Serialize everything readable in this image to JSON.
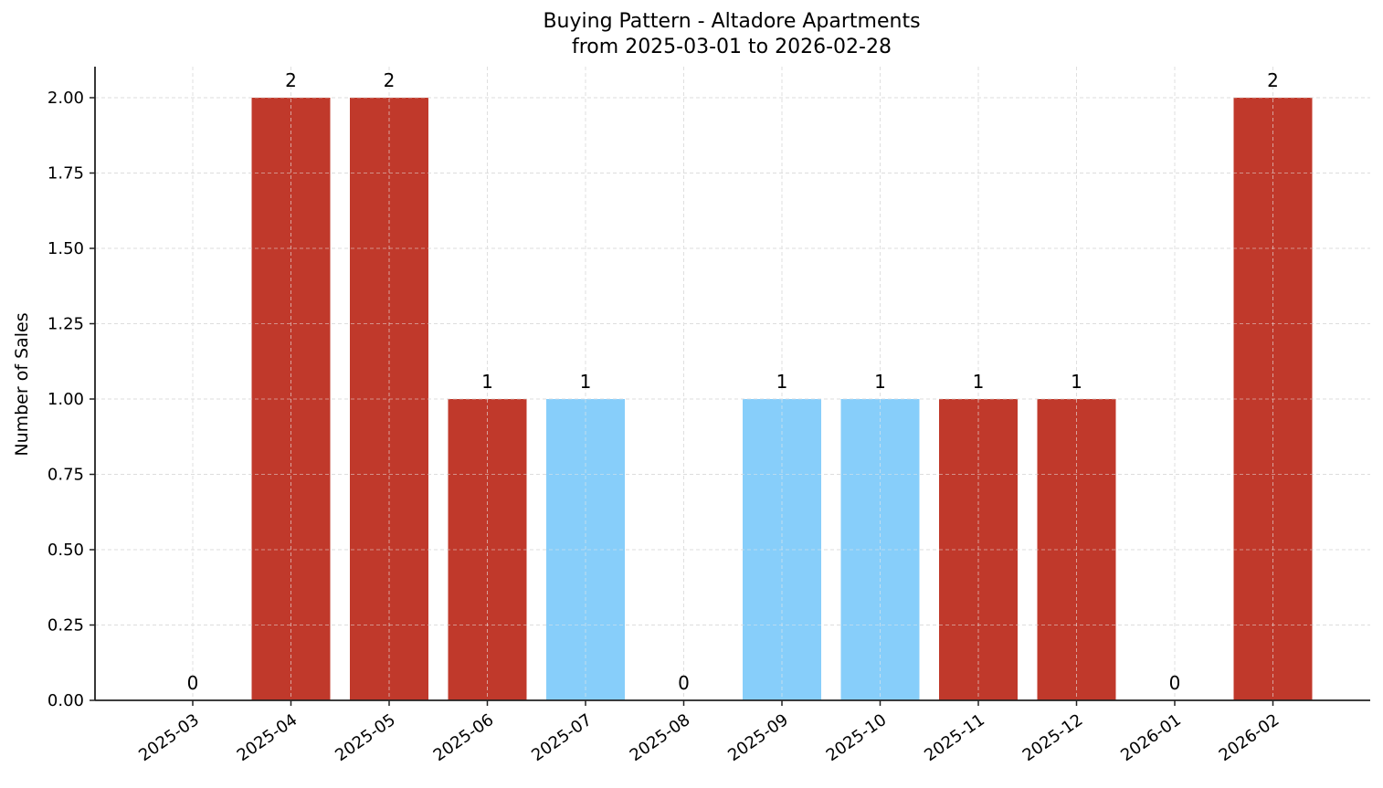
{
  "title": {
    "line1": "Buying Pattern - Altadore Apartments",
    "line2": "from 2025-03-01 to 2026-02-28"
  },
  "colors": {
    "high": "#c0392b",
    "low": "#87cefa",
    "grid": "#d3d3d3",
    "axis": "#222222"
  },
  "chart_data": {
    "type": "bar",
    "title": "Buying Pattern - Altadore Apartments\nfrom 2025-03-01 to 2026-02-28",
    "xlabel": "",
    "ylabel": "Number of Sales",
    "ylim": [
      0,
      2.1
    ],
    "yticks": [
      "0.00",
      "0.25",
      "0.50",
      "0.75",
      "1.00",
      "1.25",
      "1.50",
      "1.75",
      "2.00"
    ],
    "grid": true,
    "categories": [
      "2025-03",
      "2025-04",
      "2025-05",
      "2025-06",
      "2025-07",
      "2025-08",
      "2025-09",
      "2025-10",
      "2025-11",
      "2025-12",
      "2026-01",
      "2026-02"
    ],
    "values": [
      0,
      2,
      2,
      1,
      1,
      0,
      1,
      1,
      1,
      1,
      0,
      2
    ],
    "bar_colors": [
      "#c0392b",
      "#c0392b",
      "#c0392b",
      "#c0392b",
      "#87cefa",
      "#c0392b",
      "#87cefa",
      "#87cefa",
      "#c0392b",
      "#c0392b",
      "#c0392b",
      "#c0392b"
    ],
    "data_labels": [
      "0",
      "2",
      "2",
      "1",
      "1",
      "0",
      "1",
      "1",
      "1",
      "1",
      "0",
      "2"
    ],
    "legend": null
  }
}
